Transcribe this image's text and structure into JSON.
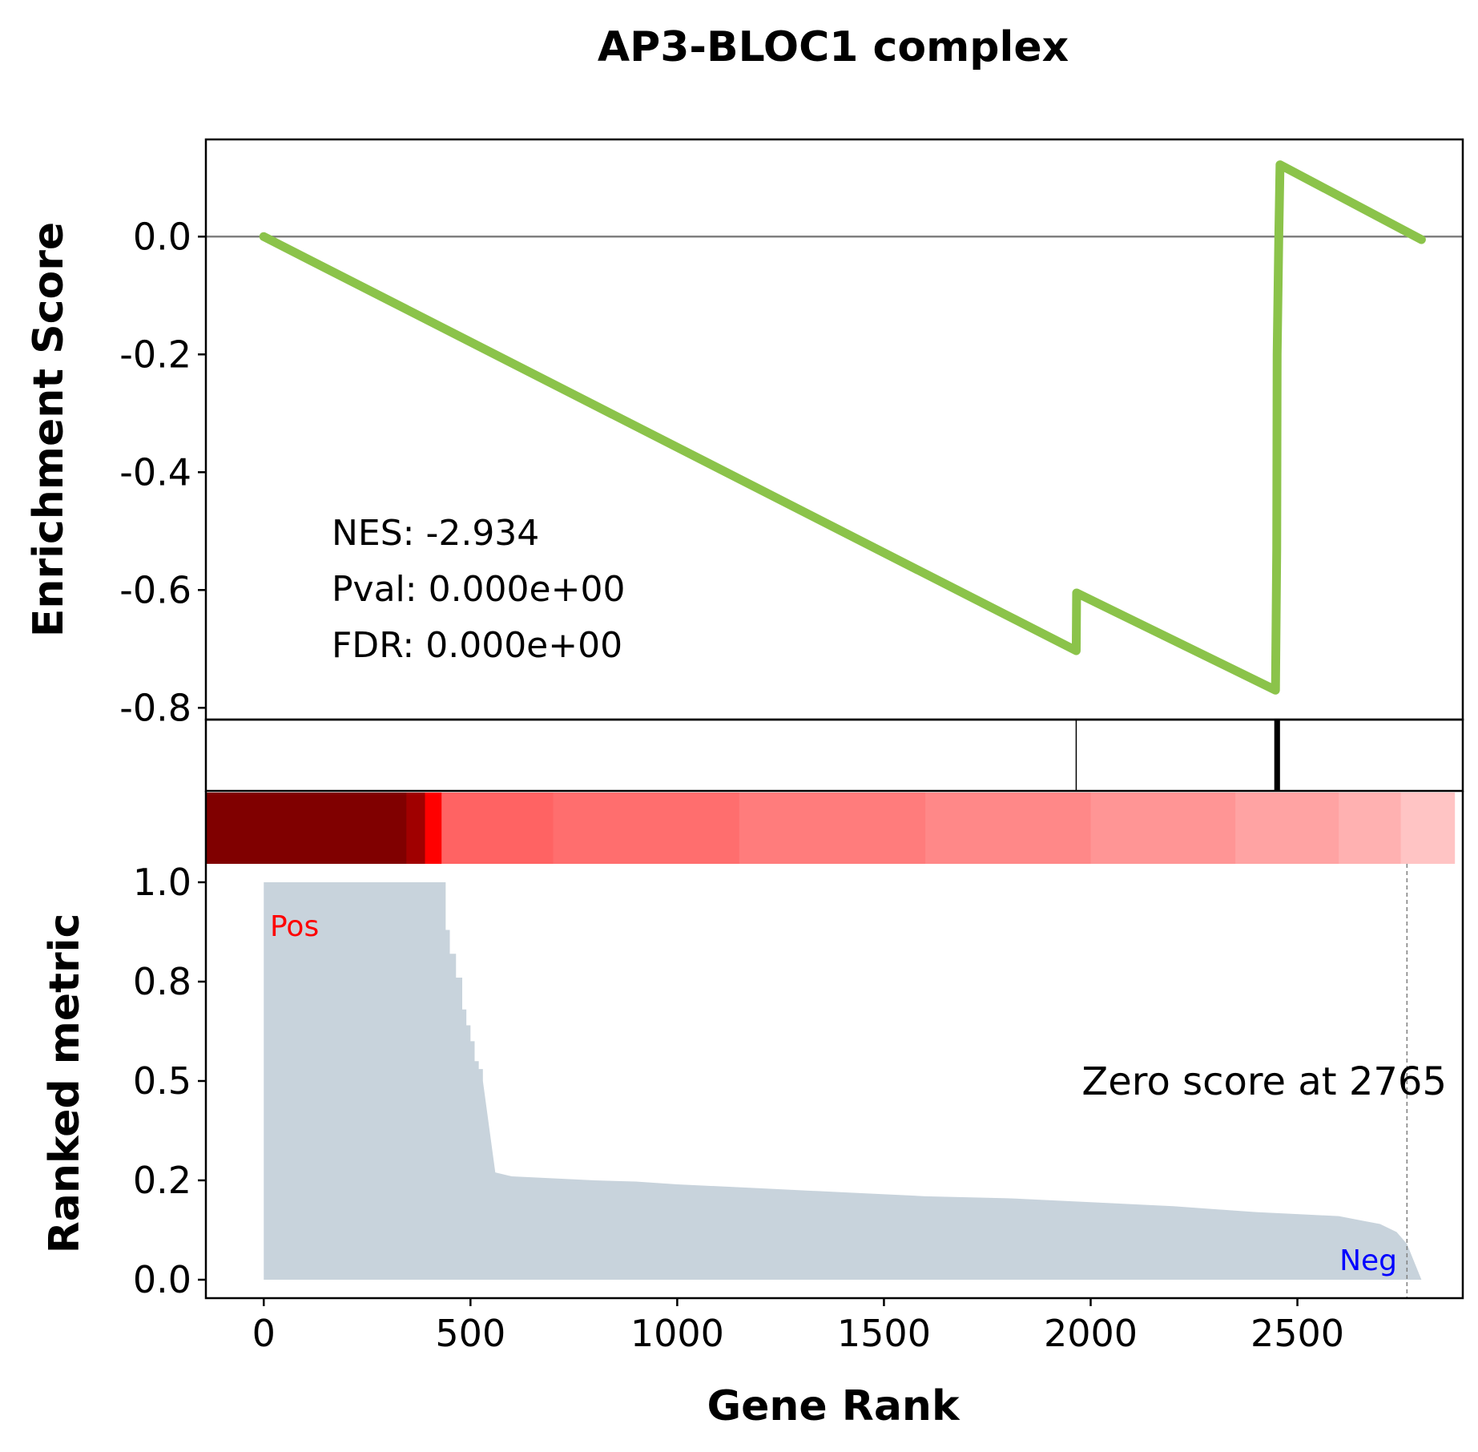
{
  "chart_data": {
    "type": "line",
    "title": "AP3-BLOC1 complex",
    "xlabel": "Gene Rank",
    "xlim": [
      -140,
      2900
    ],
    "xticks": [
      0,
      500,
      1000,
      1500,
      2000,
      2500
    ],
    "xtick_labels": [
      "0",
      "500",
      "1000",
      "1500",
      "2000",
      "2500"
    ],
    "enrichment": {
      "ylabel": "Enrichment Score",
      "ylim": [
        -0.82,
        0.165
      ],
      "yticks": [
        0.0,
        -0.2,
        -0.4,
        -0.6,
        -0.8
      ],
      "ytick_labels": [
        "0.0",
        "-0.2",
        "-0.4",
        "-0.6",
        "-0.8"
      ],
      "zero_line": 0.0,
      "line_color": "#8bc34a",
      "x": [
        0,
        1965,
        1966,
        2447,
        2450,
        2451,
        2455,
        2458,
        2800
      ],
      "y": [
        0.0,
        -0.703,
        -0.605,
        -0.77,
        -0.53,
        -0.2,
        0.0,
        0.122,
        -0.005
      ],
      "stats": {
        "nes": "NES: -2.934",
        "pval": "Pval: 0.000e+00",
        "fdr": "FDR: 0.000e+00"
      }
    },
    "hits": [
      {
        "rank": 1965,
        "weight": "thin"
      },
      {
        "rank": 2447,
        "weight": "thick"
      },
      {
        "rank": 2449,
        "weight": "thick"
      },
      {
        "rank": 2451,
        "weight": "thick"
      },
      {
        "rank": 2453,
        "weight": "thick"
      },
      {
        "rank": 2455,
        "weight": "thick"
      }
    ],
    "heatmap": {
      "segments": [
        {
          "start": -140,
          "end": 345,
          "color": "#800000"
        },
        {
          "start": 345,
          "end": 390,
          "color": "#a00000"
        },
        {
          "start": 390,
          "end": 430,
          "color": "#ff0000"
        },
        {
          "start": 430,
          "end": 700,
          "color": "#ff6363"
        },
        {
          "start": 700,
          "end": 1150,
          "color": "#ff6e6e"
        },
        {
          "start": 1150,
          "end": 1600,
          "color": "#ff7c7c"
        },
        {
          "start": 1600,
          "end": 2000,
          "color": "#ff8888"
        },
        {
          "start": 2000,
          "end": 2350,
          "color": "#ff9595"
        },
        {
          "start": 2350,
          "end": 2600,
          "color": "#ffa3a3"
        },
        {
          "start": 2600,
          "end": 2750,
          "color": "#ffb1b1"
        },
        {
          "start": 2750,
          "end": 2880,
          "color": "#ffc4c4"
        }
      ]
    },
    "ranked_metric": {
      "ylabel": "Ranked metric",
      "ylim": [
        -0.05,
        1.0
      ],
      "yticks": [
        0.0,
        0.25,
        0.5,
        0.75,
        1.0
      ],
      "ytick_labels": [
        "0.0",
        "0.2",
        "0.5",
        "0.8",
        "1.0"
      ],
      "fill_color": "#c8d3dc",
      "x": [
        0,
        440,
        440,
        450,
        450,
        465,
        465,
        480,
        480,
        490,
        490,
        500,
        500,
        510,
        510,
        520,
        520,
        530,
        530,
        560,
        600,
        700,
        800,
        900,
        1000,
        1200,
        1400,
        1600,
        1800,
        2000,
        2200,
        2400,
        2500,
        2600,
        2650,
        2700,
        2740,
        2765,
        2800
      ],
      "y": [
        1.0,
        1.0,
        0.88,
        0.88,
        0.82,
        0.82,
        0.76,
        0.76,
        0.68,
        0.68,
        0.64,
        0.64,
        0.6,
        0.6,
        0.55,
        0.55,
        0.53,
        0.53,
        0.5,
        0.27,
        0.26,
        0.255,
        0.25,
        0.247,
        0.24,
        0.23,
        0.22,
        0.21,
        0.205,
        0.195,
        0.185,
        0.17,
        0.165,
        0.16,
        0.15,
        0.14,
        0.12,
        0.09,
        0.0
      ],
      "pos_label": "Pos",
      "neg_label": "Neg",
      "pos_color": "#ff0000",
      "neg_color": "#0000ff",
      "zero_score_rank": 2765,
      "zero_score_text": "Zero score at 2765"
    }
  }
}
